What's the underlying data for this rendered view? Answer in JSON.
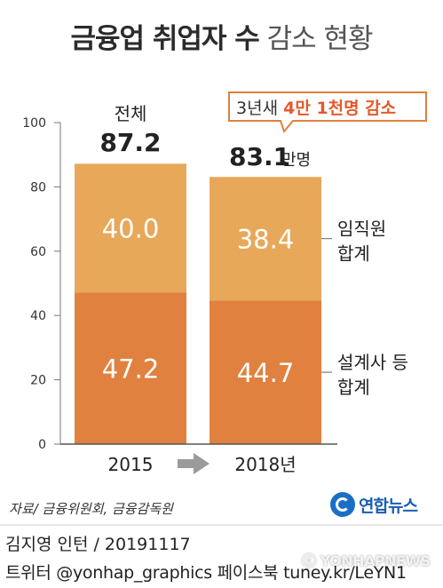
{
  "header": {
    "title_bold": "금융업 취업자 수",
    "title_light": "감소 현황"
  },
  "annotation": {
    "prefix": "3년새",
    "highlight": "4만 1천명 감소"
  },
  "chart_data": {
    "type": "bar",
    "stacked": true,
    "categories": [
      "2015",
      "2018년"
    ],
    "series": [
      {
        "name": "설계사 등 합계",
        "values": [
          47.2,
          44.7
        ],
        "color": "#e0813f"
      },
      {
        "name": "임직원 합계",
        "values": [
          40.0,
          38.4
        ],
        "color": "#e8a85a"
      }
    ],
    "totals": [
      87.2,
      83.1
    ],
    "total_label": "전체",
    "total_unit": "만명",
    "ylim": [
      0,
      100
    ],
    "yticks": [
      0,
      20,
      40,
      60,
      80,
      100
    ],
    "legend_position": "right",
    "xlabel": "",
    "ylabel": "",
    "colors": {
      "annotation_border": "#e0813f",
      "annotation_text": "#e55a2b",
      "arrow": "#9b9b9b"
    }
  },
  "footer": {
    "source": "자료/ 금융위원회, 금융감독원",
    "logo_text": "연합뉴스",
    "credit": "김지영 인턴 / 20191117",
    "social": "트위터 @yonhap_graphics  페이스북 tuney.kr/LeYN1",
    "watermark": "ⓒ YONHAPNEWS"
  }
}
